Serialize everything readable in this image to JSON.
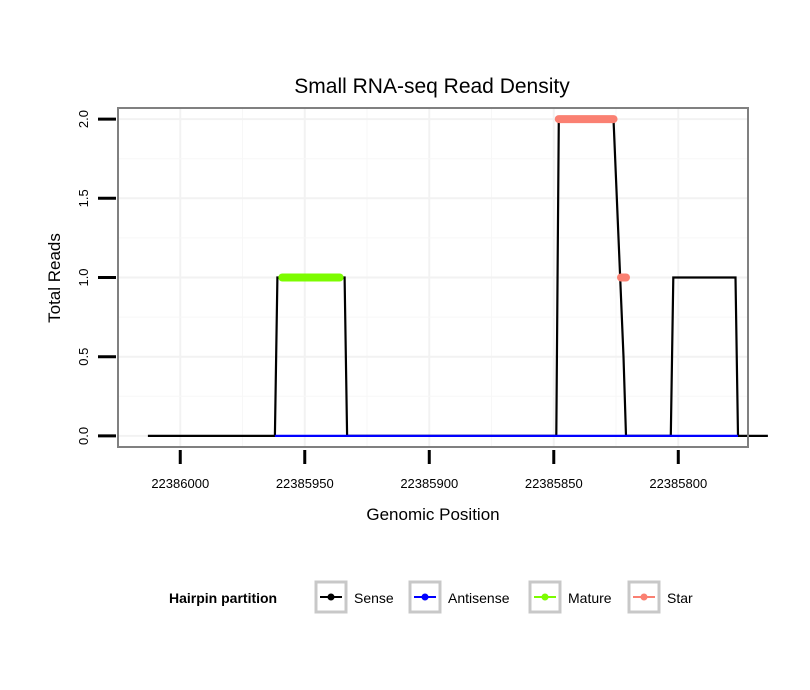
{
  "chart_data": {
    "type": "line",
    "title": "Small RNA-seq Read Density",
    "xlabel": "Genomic Position",
    "ylabel": "Total Reads",
    "x_reversed": true,
    "xlim": [
      22386025,
      22385772
    ],
    "ylim": [
      -0.07,
      2.07
    ],
    "xticks": [
      22386000,
      22385950,
      22385900,
      22385850,
      22385800
    ],
    "yticks": [
      0.0,
      0.5,
      1.0,
      1.5,
      2.0
    ],
    "ytick_labels": [
      "0.0",
      "0.5",
      "1.0",
      "1.5",
      "2.0"
    ],
    "grid": true,
    "legend": {
      "title": "Hairpin partition",
      "position": "bottom",
      "entries": [
        "Sense",
        "Antisense",
        "Mature",
        "Star"
      ]
    },
    "series": [
      {
        "name": "Sense",
        "color": "#000000",
        "style": "line",
        "points": [
          [
            22386013,
            0
          ],
          [
            22385962,
            0
          ],
          [
            22385961,
            1
          ],
          [
            22385934,
            1
          ],
          [
            22385933,
            0
          ],
          [
            22385849,
            0
          ],
          [
            22385848,
            2
          ],
          [
            22385826,
            2
          ],
          [
            22385822,
            0.5
          ],
          [
            22385821,
            0
          ],
          [
            22385803,
            0
          ],
          [
            22385802,
            1
          ],
          [
            22385777,
            1
          ],
          [
            22385776,
            0
          ],
          [
            22385764,
            0
          ]
        ]
      },
      {
        "name": "Antisense",
        "color": "#0000ff",
        "style": "line",
        "points": [
          [
            22385962,
            0
          ],
          [
            22385933,
            0
          ],
          [
            22385848,
            0
          ],
          [
            22385822,
            0
          ],
          [
            22385803,
            0
          ],
          [
            22385776,
            0
          ]
        ]
      },
      {
        "name": "Mature",
        "color": "#7cfc00",
        "style": "points",
        "points": [
          [
            22385959,
            1
          ],
          [
            22385936,
            1
          ]
        ]
      },
      {
        "name": "Star",
        "color": "#fa8072",
        "style": "points",
        "points": [
          [
            22385848,
            2
          ],
          [
            22385826,
            2
          ],
          [
            22385823,
            1
          ],
          [
            22385821,
            1
          ]
        ]
      }
    ]
  }
}
